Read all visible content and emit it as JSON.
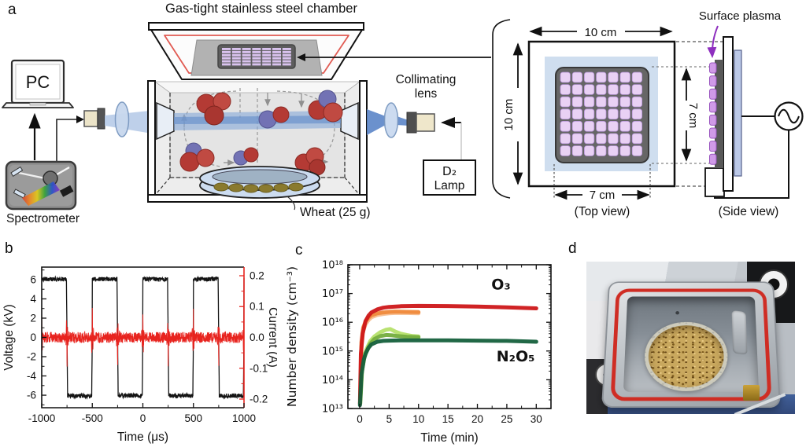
{
  "panel_labels": {
    "a": "a",
    "b": "b",
    "c": "c",
    "d": "d"
  },
  "panel_a": {
    "title": "Gas-tight stainless steel chamber",
    "pc": "PC",
    "spectrometer": "Spectrometer",
    "collimating_line1": "Collimating",
    "collimating_line2": "lens",
    "d2": "D₂",
    "lamp": "Lamp",
    "wheat": "Wheat (25 g)",
    "surface_plasma": "Surface plasma",
    "top_view": "(Top view)",
    "side_view": "(Side view)",
    "dim_10": "10 cm",
    "dim_7": "7 cm"
  },
  "colors": {
    "surface_plasma_text": "#a233cc",
    "wheat_text": "#b5651d",
    "gasket_red": "#cf2d24",
    "voltage_trace": "#141414",
    "current_trace": "#e8241f",
    "o3_main": "#cd1719",
    "n2o5_main": "#15603c",
    "plasma_cell": "#e9d1f4"
  },
  "chart_data": [
    {
      "id": "b",
      "type": "line",
      "xlabel": "Time (μs)",
      "ylabel_left": "Voltage (kV)",
      "ylabel_right": "Current (A)",
      "xlim": [
        -1000,
        1000
      ],
      "ylim_left": [
        -7.3,
        7.3
      ],
      "ylim_right": [
        -0.228,
        0.228
      ],
      "xticks": [
        -1000,
        -500,
        0,
        500,
        1000
      ],
      "xminor_step": 250,
      "yticks_left": [
        6,
        4,
        2,
        0,
        -2,
        -4,
        -6
      ],
      "yminor_left_step": 1,
      "ytick_right_values": [
        0.2,
        0.1,
        0.0,
        -0.1,
        -0.2
      ],
      "ytick_right_labels": [
        "0.2",
        "0.1",
        "0.0",
        "-0.1",
        "-0.2"
      ],
      "yminor_right_step": 0.05,
      "grid": false,
      "legend": null,
      "series": [
        {
          "name": "voltage",
          "axis": "left",
          "color": "#141414",
          "waveform": "square",
          "amplitude_kV": 6.05,
          "period_us": 500,
          "first_high_start_us": -1000,
          "transition_us": 12,
          "plateau_noise_kV": 0.22
        },
        {
          "name": "current",
          "axis": "right",
          "color": "#e8241f",
          "waveform": "noise_spikes",
          "noise_A": 0.018,
          "spike_A": 0.095,
          "rising_edges_us": [
            -1000,
            -500,
            0,
            500,
            1000
          ],
          "falling_edges_us": [
            -750,
            -250,
            250,
            750
          ]
        }
      ]
    },
    {
      "id": "c",
      "type": "line",
      "xlabel": "Time (min)",
      "ylabel": "Number density (cm⁻³)",
      "xlim": [
        -2,
        32.5
      ],
      "xticks": [
        0,
        5,
        10,
        15,
        20,
        25,
        30
      ],
      "xminor_step": 2.5,
      "yscale": "log",
      "ylim": [
        10000000000000.0,
        1e+18
      ],
      "ytick_labels": [
        "10¹³",
        "10¹⁴",
        "10¹⁵",
        "10¹⁶",
        "10¹⁷",
        "10¹⁸"
      ],
      "grid": false,
      "legend": null,
      "annotations": [
        {
          "text": "O₃",
          "x": 24,
          "y": 1.4e+17,
          "color": "#cd1719"
        },
        {
          "text": "N₂O₅",
          "x": 26.5,
          "y": 440000000000000.0,
          "color": "#15603c"
        }
      ],
      "series": [
        {
          "name": "O₃ repeat run b (10 min)",
          "color": "#f7bd8e",
          "width": 5,
          "points": [
            [
              0.1,
              30000000000000.0
            ],
            [
              0.3,
              1500000000000000.0
            ],
            [
              0.6,
              5000000000000000.0
            ],
            [
              1,
              8500000000000000.0
            ],
            [
              1.5,
              1.2e+16
            ],
            [
              2,
              1.5e+16
            ],
            [
              3,
              1.8e+16
            ],
            [
              4,
              1.95e+16
            ],
            [
              5,
              2.05e+16
            ],
            [
              6,
              2.1e+16
            ],
            [
              8,
              2.1e+16
            ],
            [
              10,
              2.05e+16
            ]
          ]
        },
        {
          "name": "O₃ repeat run (10 min)",
          "color": "#ef8a3c",
          "width": 5,
          "points": [
            [
              0.1,
              20000000000000.0
            ],
            [
              0.3,
              2000000000000000.0
            ],
            [
              0.6,
              6500000000000000.0
            ],
            [
              1,
              1.05e+16
            ],
            [
              1.5,
              1.45e+16
            ],
            [
              2,
              1.75e+16
            ],
            [
              3,
              2.05e+16
            ],
            [
              4,
              2.2e+16
            ],
            [
              5,
              2.3e+16
            ],
            [
              6,
              2.35e+16
            ],
            [
              8,
              2.3e+16
            ],
            [
              10,
              2.25e+16
            ]
          ]
        },
        {
          "name": "N₂O₅ repeat run b (10 min)",
          "color": "#b5e06a",
          "width": 5,
          "points": [
            [
              0.1,
              20000000000000.0
            ],
            [
              0.4,
              250000000000000.0
            ],
            [
              0.8,
              700000000000000.0
            ],
            [
              1.2,
              1200000000000000.0
            ],
            [
              1.8,
              2200000000000000.0
            ],
            [
              2.5,
              3200000000000000.0
            ],
            [
              3.5,
              4500000000000000.0
            ],
            [
              4.5,
              5500000000000000.0
            ],
            [
              5.2,
              5800000000000000.0
            ],
            [
              6,
              4800000000000000.0
            ],
            [
              7,
              4000000000000000.0
            ],
            [
              8,
              3600000000000000.0
            ],
            [
              9,
              3300000000000000.0
            ],
            [
              10,
              3200000000000000.0
            ]
          ]
        },
        {
          "name": "N₂O₅ repeat run (10 min)",
          "color": "#74ad3d",
          "width": 5,
          "points": [
            [
              0.1,
              15000000000000.0
            ],
            [
              0.4,
              200000000000000.0
            ],
            [
              0.8,
              600000000000000.0
            ],
            [
              1.2,
              1000000000000000.0
            ],
            [
              1.8,
              1800000000000000.0
            ],
            [
              2.5,
              2600000000000000.0
            ],
            [
              3.5,
              3300000000000000.0
            ],
            [
              4.5,
              3600000000000000.0
            ],
            [
              5.5,
              3500000000000000.0
            ],
            [
              6.5,
              3300000000000000.0
            ],
            [
              8,
              3100000000000000.0
            ],
            [
              10,
              3000000000000000.0
            ]
          ]
        },
        {
          "name": "O₃",
          "color": "#cd1719",
          "width": 5,
          "points": [
            [
              0.05,
              15000000000000.0
            ],
            [
              0.2,
              800000000000000.0
            ],
            [
              0.5,
              4000000000000000.0
            ],
            [
              1,
              1.1e+16
            ],
            [
              1.5,
              1.7e+16
            ],
            [
              2,
              2.2e+16
            ],
            [
              3,
              2.8e+16
            ],
            [
              4,
              3.2e+16
            ],
            [
              5,
              3.4e+16
            ],
            [
              7,
              3.6e+16
            ],
            [
              10,
              3.7e+16
            ],
            [
              15,
              3.65e+16
            ],
            [
              20,
              3.5e+16
            ],
            [
              25,
              3.3e+16
            ],
            [
              30,
              3.05e+16
            ]
          ]
        },
        {
          "name": "N₂O₅",
          "color": "#15603c",
          "width": 5,
          "points": [
            [
              0.05,
              13000000000000.0
            ],
            [
              0.3,
              150000000000000.0
            ],
            [
              0.7,
              500000000000000.0
            ],
            [
              1,
              800000000000000.0
            ],
            [
              1.5,
              1300000000000000.0
            ],
            [
              2,
              1700000000000000.0
            ],
            [
              3,
              2100000000000000.0
            ],
            [
              4,
              2250000000000000.0
            ],
            [
              5,
              2300000000000000.0
            ],
            [
              7,
              2350000000000000.0
            ],
            [
              10,
              2350000000000000.0
            ],
            [
              15,
              2350000000000000.0
            ],
            [
              20,
              2300000000000000.0
            ],
            [
              25,
              2250000000000000.0
            ],
            [
              30,
              2100000000000000.0
            ]
          ]
        }
      ]
    }
  ]
}
